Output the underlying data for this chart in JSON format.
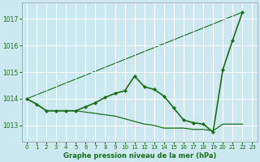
{
  "background_color": "#cce8f0",
  "grid_color": "#ffffff",
  "line_color": "#1a6e1a",
  "title": "Graphe pression niveau de la mer (hPa)",
  "xlim": [
    -0.5,
    23.5
  ],
  "ylim": [
    1012.4,
    1017.6
  ],
  "yticks": [
    1013,
    1014,
    1015,
    1016,
    1017
  ],
  "xticks": [
    0,
    1,
    2,
    3,
    4,
    5,
    6,
    7,
    8,
    9,
    10,
    11,
    12,
    13,
    14,
    15,
    16,
    17,
    18,
    19,
    20,
    21,
    22,
    23
  ],
  "series_main": {
    "x": [
      0,
      1,
      2,
      3,
      4,
      5,
      6,
      7,
      8,
      9,
      10,
      11,
      12,
      13,
      14,
      15,
      16,
      17,
      18,
      19,
      20,
      21,
      22
    ],
    "y": [
      1014.0,
      1013.8,
      1013.55,
      1013.55,
      1013.55,
      1013.55,
      1013.7,
      1013.85,
      1014.05,
      1014.2,
      1014.3,
      1014.85,
      1014.45,
      1014.35,
      1014.1,
      1013.65,
      1013.2,
      1013.1,
      1013.05,
      1012.75,
      1015.1,
      1016.2,
      1017.25
    ],
    "lw": 1.2
  },
  "series_flat": {
    "x": [
      0,
      1,
      2,
      3,
      4,
      5,
      6,
      7,
      8,
      9,
      10,
      11,
      12,
      13,
      14,
      15,
      16,
      17,
      18,
      19,
      20,
      21,
      22
    ],
    "y": [
      1014.0,
      1013.8,
      1013.55,
      1013.55,
      1013.55,
      1013.55,
      1013.5,
      1013.45,
      1013.4,
      1013.35,
      1013.25,
      1013.15,
      1013.05,
      1013.0,
      1012.9,
      1012.9,
      1012.9,
      1012.85,
      1012.85,
      1012.8,
      1013.05,
      1013.05,
      1013.05
    ],
    "lw": 0.9
  },
  "series_trend": {
    "x": [
      0,
      22
    ],
    "y": [
      1014.0,
      1017.25
    ],
    "lw": 0.8
  }
}
